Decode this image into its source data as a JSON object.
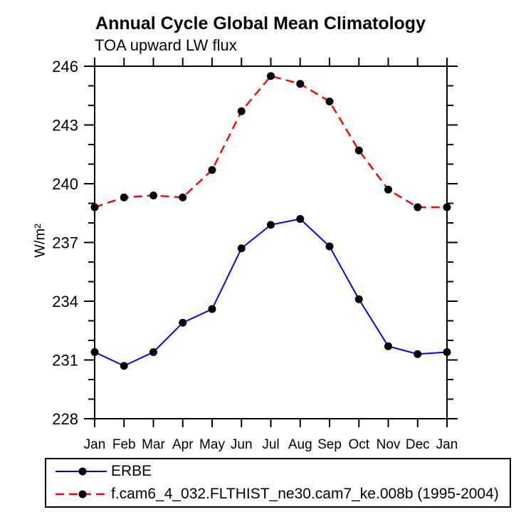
{
  "chart_data": {
    "type": "line",
    "title": "Annual Cycle Global Mean Climatology",
    "subtitle": "TOA upward LW flux",
    "xlabel": "",
    "ylabel": "W/m²",
    "categories": [
      "Jan",
      "Feb",
      "Mar",
      "Apr",
      "May",
      "Jun",
      "Jul",
      "Aug",
      "Sep",
      "Oct",
      "Nov",
      "Dec",
      "Jan"
    ],
    "ylim": [
      228,
      246
    ],
    "yticks": {
      "major_step": 3,
      "minor_step": 1,
      "major_labels": [
        228,
        231,
        234,
        237,
        240,
        243,
        246
      ]
    },
    "grid": false,
    "legend_position": "bottom-left-boxed",
    "series": [
      {
        "name": "ERBE",
        "color": "#0000ff",
        "style": "solid",
        "marker": "filled-circle",
        "marker_color": "#000000",
        "values": [
          231.4,
          230.7,
          231.4,
          232.9,
          233.6,
          236.7,
          237.9,
          238.2,
          236.8,
          234.1,
          231.7,
          231.3,
          231.4
        ]
      },
      {
        "name": "f.cam6_4_032.FLTHIST_ne30.cam7_ke.008b (1995-2004)",
        "color": "#ff0000",
        "style": "dashed",
        "marker": "filled-circle",
        "marker_color": "#000000",
        "values": [
          238.8,
          239.3,
          239.4,
          239.3,
          240.7,
          243.7,
          245.5,
          245.1,
          244.2,
          241.7,
          239.7,
          238.8,
          238.8
        ]
      }
    ],
    "frame_color": "#000000"
  }
}
